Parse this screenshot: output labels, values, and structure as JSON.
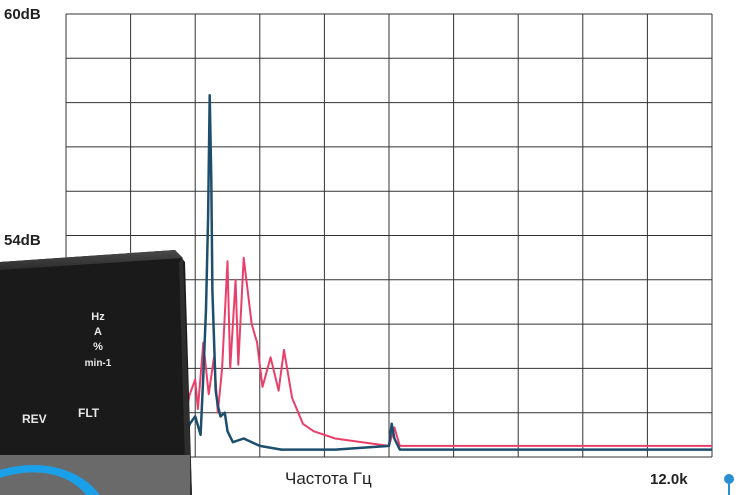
{
  "chart_data": {
    "type": "line",
    "xlabel": "Частота Гц",
    "x_max_label": "12.0k",
    "y_labels": {
      "top": "60dB",
      "mid": "54dB"
    },
    "ylim": [
      48,
      60
    ],
    "xlim": [
      0,
      12000
    ],
    "grid": true,
    "colors": {
      "blue_series": "#1d4e6e",
      "red_series": "#e8406a",
      "marker": "#2a8fd0"
    },
    "series": [
      {
        "color": "blue",
        "x": [
          0,
          1200,
          1500,
          1800,
          2000,
          2100,
          2200,
          2300,
          2400,
          2500,
          2550,
          2600,
          2640,
          2670,
          2700,
          2720,
          2750,
          2780,
          2820,
          2870,
          2950,
          3000,
          3100,
          3300,
          3600,
          4000,
          5000,
          6000,
          6050,
          6100,
          6200,
          7000,
          9000,
          12000
        ],
        "values": [
          48.2,
          48.2,
          48.4,
          48.7,
          48.6,
          49.0,
          48.5,
          48.9,
          49.1,
          48.6,
          50.2,
          52.0,
          54.5,
          57.8,
          55.5,
          52.5,
          51.2,
          49.8,
          49.4,
          49.1,
          49.2,
          48.7,
          48.4,
          48.5,
          48.3,
          48.2,
          48.2,
          48.3,
          48.9,
          48.5,
          48.2,
          48.2,
          48.2,
          48.2
        ]
      },
      {
        "color": "red",
        "x": [
          0,
          900,
          1200,
          1500,
          1700,
          1900,
          2100,
          2200,
          2300,
          2400,
          2450,
          2550,
          2650,
          2750,
          2820,
          2900,
          3000,
          3050,
          3150,
          3200,
          3300,
          3450,
          3550,
          3650,
          3800,
          3950,
          4050,
          4200,
          4400,
          4600,
          5000,
          5500,
          6000,
          6100,
          6200,
          7000,
          9000,
          12000
        ],
        "values": [
          48.3,
          48.3,
          48.6,
          48.4,
          48.6,
          48.8,
          49.4,
          49.0,
          49.7,
          50.1,
          49.3,
          51.1,
          49.7,
          50.7,
          49.2,
          50.4,
          53.3,
          50.4,
          52.8,
          50.5,
          53.4,
          51.6,
          51.1,
          49.9,
          50.7,
          49.8,
          50.9,
          49.6,
          48.9,
          48.7,
          48.5,
          48.4,
          48.3,
          48.8,
          48.3,
          48.3,
          48.3,
          48.3
        ]
      }
    ]
  },
  "device": {
    "units": [
      "Hz",
      "A",
      "%",
      "min-1"
    ],
    "rev_label": "REV",
    "flt_label": "FLT"
  }
}
